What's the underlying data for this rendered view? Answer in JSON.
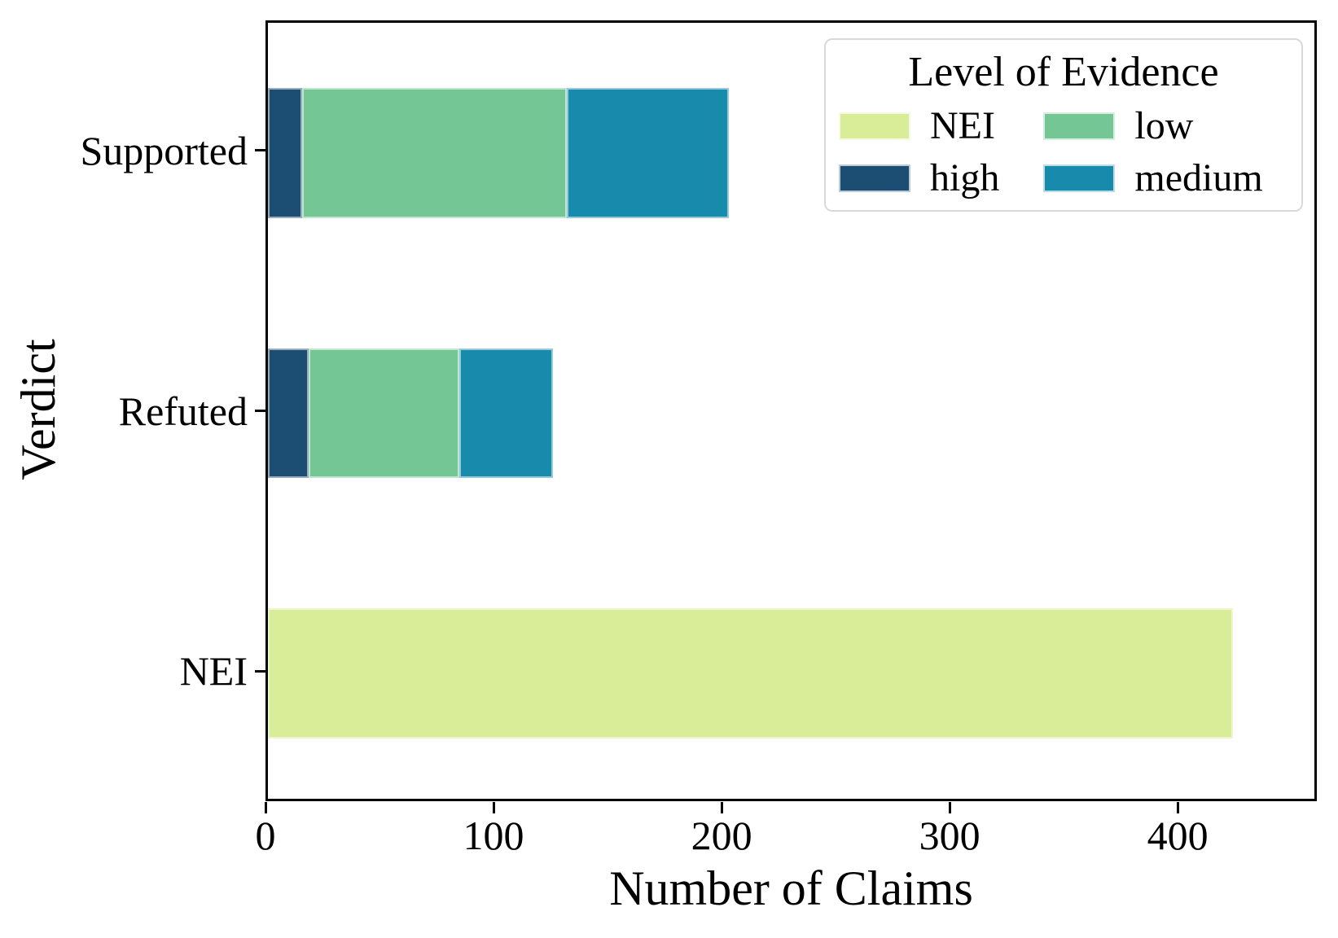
{
  "chart_data": {
    "type": "bar",
    "orientation": "horizontal",
    "stacked": true,
    "title": "",
    "xlabel": "Number of Claims",
    "ylabel": "Verdict",
    "categories": [
      "Supported",
      "Refuted",
      "NEI"
    ],
    "category_positions": [
      2,
      1,
      0
    ],
    "series": [
      {
        "name": "high",
        "color": "#1c4d73",
        "values": [
          15,
          18,
          0
        ]
      },
      {
        "name": "low",
        "color": "#74c795",
        "values": [
          116,
          66,
          0
        ]
      },
      {
        "name": "medium",
        "color": "#188bad",
        "values": [
          71,
          41,
          0
        ]
      },
      {
        "name": "NEI",
        "color": "#d9ec97",
        "values": [
          0,
          0,
          423
        ]
      }
    ],
    "xlim": [
      0,
      461
    ],
    "ylim": [
      -0.5,
      2.5
    ],
    "bar_height_units": 0.5,
    "xticks": [
      0,
      100,
      200,
      300,
      400
    ],
    "grid": false,
    "axis_color": "#000000",
    "legend": {
      "title": "Level of Evidence",
      "position": "upper right",
      "columns": 2,
      "items_row_major": [
        {
          "label": "NEI",
          "color": "#d9ec97"
        },
        {
          "label": "low",
          "color": "#74c795"
        },
        {
          "label": "high",
          "color": "#1c4d73"
        },
        {
          "label": "medium",
          "color": "#188bad"
        }
      ]
    }
  }
}
